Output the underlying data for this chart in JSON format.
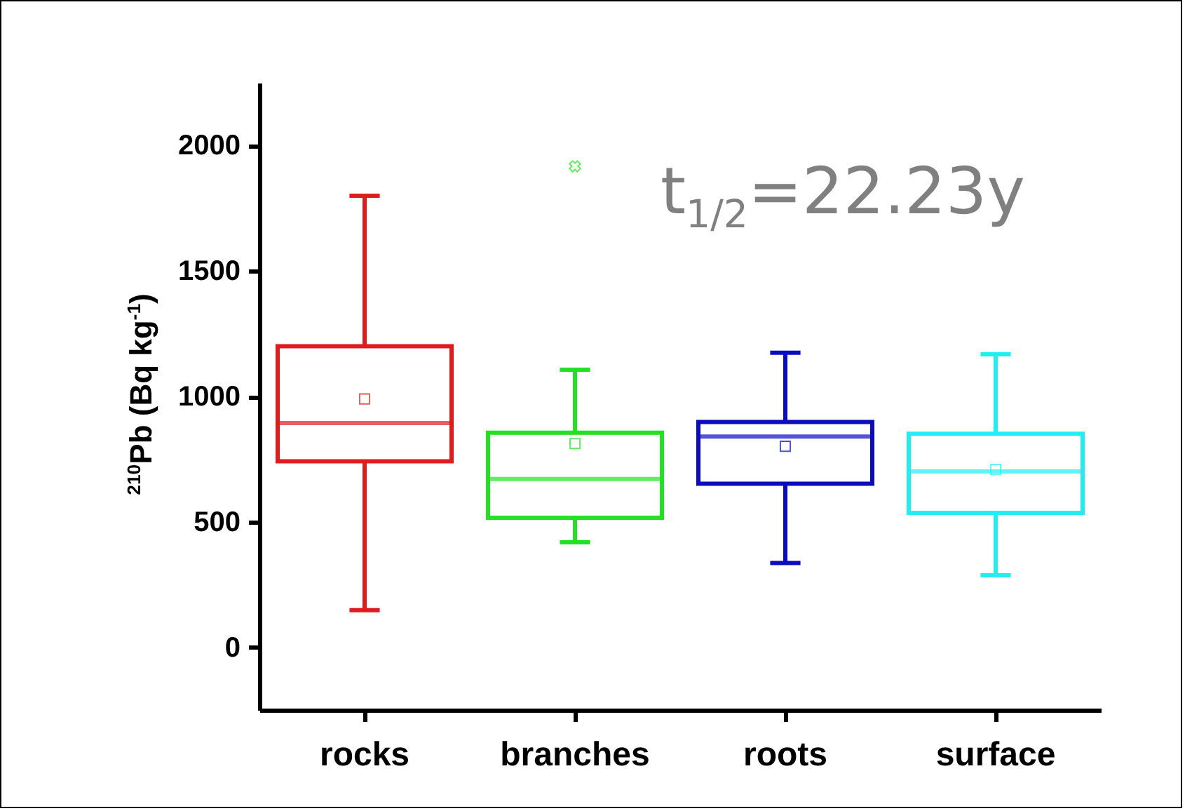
{
  "chart_data": {
    "type": "box",
    "ylabel": "$^{210}$Pb (Bq kg$^{-1}$)",
    "categories": [
      "rocks",
      "branches",
      "roots",
      "surface"
    ],
    "colors": [
      "#e01b1b",
      "#22e022",
      "#0b0bc0",
      "#22eef0"
    ],
    "boxes": [
      {
        "low": 148,
        "q1": 741,
        "median": 894,
        "q3": 1200,
        "high": 1800,
        "mean": 990
      },
      {
        "low": 418,
        "q1": 516,
        "median": 671,
        "q3": 855,
        "high": 1106,
        "mean": 812,
        "outliers": [
          1917
        ]
      },
      {
        "low": 336,
        "q1": 652,
        "median": 840,
        "q3": 898,
        "high": 1174,
        "mean": 801
      },
      {
        "low": 287,
        "q1": 536,
        "median": 701,
        "q3": 851,
        "high": 1168,
        "mean": 709
      }
    ],
    "ylim": [
      -250,
      2250
    ],
    "yticks": [
      0,
      500,
      1000,
      1500,
      2000
    ],
    "grid": false,
    "annotations": [
      "t$_{1/2}$=22.23y"
    ]
  }
}
